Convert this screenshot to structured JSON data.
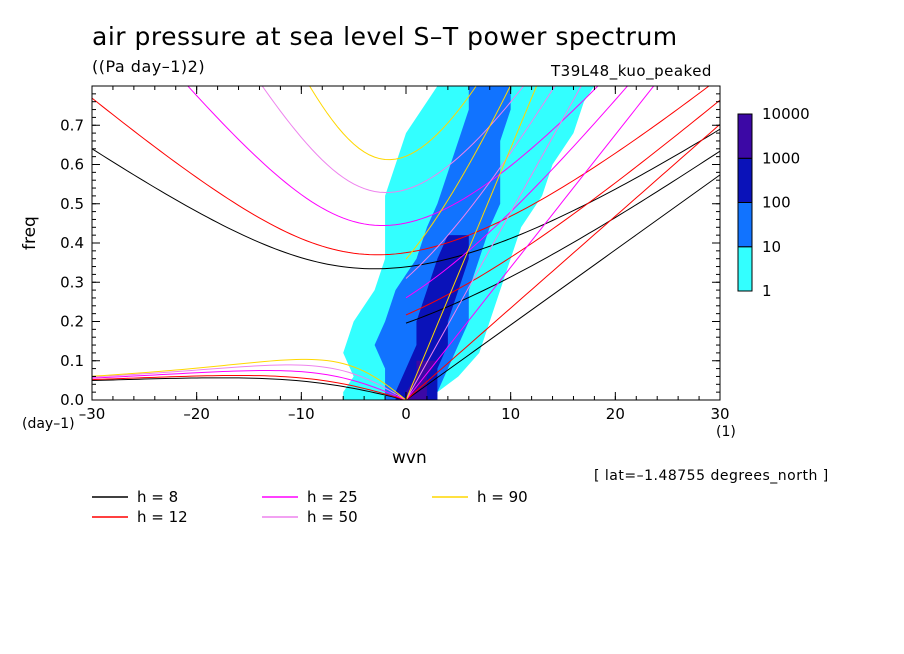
{
  "header": {
    "title": "air pressure at sea level S–T power spectrum",
    "units": "((Pa day–1)2)",
    "experiment": "T39L48_kuo_peaked"
  },
  "axes": {
    "ylabel": "freq",
    "xlabel": "wvn",
    "y_unit": "(day–1)",
    "x_unit": "(1)"
  },
  "note": "[ lat=–1.48755 degrees_north ]",
  "chart_data": {
    "type": "heatmap",
    "title": "air pressure at sea level S–T power spectrum",
    "xlabel": "wvn",
    "ylabel": "freq",
    "xlim": [
      -30,
      30
    ],
    "ylim": [
      0,
      0.8
    ],
    "x_ticks": [
      -30,
      -20,
      -10,
      0,
      10,
      20,
      30
    ],
    "x_tick_labels": [
      "–30",
      "–20",
      "–10",
      "0",
      "10",
      "20",
      "30"
    ],
    "y_ticks": [
      0.0,
      0.1,
      0.2,
      0.3,
      0.4,
      0.5,
      0.6,
      0.7
    ],
    "y_tick_labels": [
      "0.0",
      "0.1",
      "0.2",
      "0.3",
      "0.4",
      "0.5",
      "0.6",
      "0.7"
    ],
    "colorbar": {
      "levels": [
        "1",
        "10",
        "100",
        "1000",
        "10000"
      ],
      "colors": [
        "#33ffff",
        "#1173ff",
        "#0a12b9",
        "#3c08a5"
      ]
    },
    "contour_bands": [
      {
        "level": 1,
        "color": "#33ffff",
        "ridge": [
          [
            0.02,
            -6,
            3
          ],
          [
            0.06,
            -5,
            5
          ],
          [
            0.12,
            -6,
            7
          ],
          [
            0.2,
            -5,
            8
          ],
          [
            0.28,
            -3,
            9
          ],
          [
            0.36,
            -2,
            10
          ],
          [
            0.44,
            -2,
            11
          ],
          [
            0.52,
            -2,
            13
          ],
          [
            0.6,
            -1,
            14
          ],
          [
            0.68,
            0,
            16
          ],
          [
            0.76,
            2,
            17
          ],
          [
            0.8,
            3,
            18
          ]
        ]
      },
      {
        "level": 10,
        "color": "#1173ff",
        "ridge": [
          [
            0.02,
            -2,
            3
          ],
          [
            0.08,
            -2,
            4
          ],
          [
            0.14,
            -3,
            5
          ],
          [
            0.2,
            -2,
            6
          ],
          [
            0.28,
            -1,
            6
          ],
          [
            0.36,
            1,
            7
          ],
          [
            0.44,
            2,
            8
          ],
          [
            0.5,
            3,
            9
          ],
          [
            0.58,
            4,
            9
          ],
          [
            0.66,
            5,
            9
          ],
          [
            0.74,
            6,
            10
          ],
          [
            0.8,
            6,
            10
          ]
        ]
      },
      {
        "level": 100,
        "color": "#0a12b9",
        "ridge": [
          [
            0.02,
            -1,
            3
          ],
          [
            0.08,
            0,
            3
          ],
          [
            0.14,
            1,
            4
          ],
          [
            0.2,
            1,
            4
          ],
          [
            0.28,
            2,
            5
          ],
          [
            0.36,
            3,
            6
          ],
          [
            0.42,
            4,
            6
          ]
        ]
      },
      {
        "level": 1000,
        "color": "#3c08a5",
        "ridge": [
          [
            0.02,
            0,
            2
          ],
          [
            0.06,
            1,
            2
          ],
          [
            0.1,
            1,
            3
          ]
        ]
      }
    ],
    "dispersion_curves": [
      {
        "name": "h =  8",
        "color": "#000000",
        "label": "h =  8"
      },
      {
        "name": "h = 12",
        "color": "#ff0000",
        "label": "h = 12"
      },
      {
        "name": "h = 25",
        "color": "#ff00ff",
        "label": "h = 25"
      },
      {
        "name": "h = 50",
        "color": "#ee82ee",
        "label": "h = 50"
      },
      {
        "name": "h = 90",
        "color": "#ffd700",
        "label": "h = 90"
      }
    ],
    "equivalent_depths_m": [
      8,
      12,
      25,
      50,
      90
    ],
    "grid": false,
    "legend_position": "bottom"
  },
  "legend": [
    {
      "label": "h =  8",
      "color": "#000000"
    },
    {
      "label": "h = 12",
      "color": "#ff0000"
    },
    {
      "label": "h = 25",
      "color": "#ff00ff"
    },
    {
      "label": "h = 50",
      "color": "#ee82ee"
    },
    {
      "label": "h = 90",
      "color": "#ffd700"
    }
  ]
}
